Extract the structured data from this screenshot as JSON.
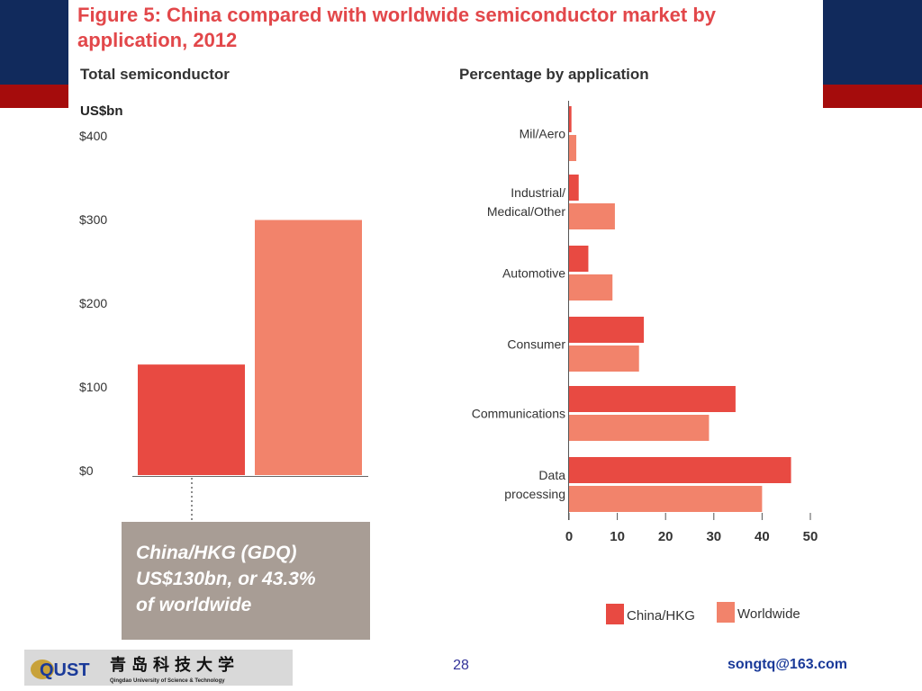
{
  "slide": {
    "page_number": "28",
    "email": "songtq@163.com",
    "logo_text": "QUST",
    "logo_chinese": "青岛科技大学",
    "logo_english": "Qingdao University of Science & Technology"
  },
  "figure": {
    "title": "Figure 5: China compared with worldwide semiconductor market by application, 2012"
  },
  "callout": {
    "line1": "China/HKG (GDQ)",
    "line2": "US$130bn, or 43.3%",
    "line3": "of worldwide"
  },
  "legend": {
    "items": [
      {
        "label": "China/HKG",
        "color": "#e84a42"
      },
      {
        "label": "Worldwide",
        "color": "#f2836b"
      }
    ]
  },
  "chart_data": [
    {
      "type": "bar",
      "title": "Total semiconductor",
      "ylabel": "US$bn",
      "ylim": [
        0,
        400
      ],
      "yticks": [
        "$0",
        "$100",
        "$200",
        "$300",
        "$400"
      ],
      "categories": [
        "China/HKG",
        "Worldwide"
      ],
      "values": [
        130,
        300
      ],
      "colors": [
        "#e84a42",
        "#f2836b"
      ]
    },
    {
      "type": "bar",
      "orientation": "horizontal",
      "title": "Percentage by application",
      "categories": [
        "Mil/Aero",
        "Industrial/\nMedical/Other",
        "Automotive",
        "Consumer",
        "Communications",
        "Data\nprocessing"
      ],
      "xlim": [
        0,
        50
      ],
      "xticks": [
        "0",
        "10",
        "20",
        "30",
        "40",
        "50"
      ],
      "series": [
        {
          "name": "China/HKG",
          "color": "#e84a42",
          "values": [
            0.5,
            2,
            4,
            15.5,
            34.5,
            46
          ]
        },
        {
          "name": "Worldwide",
          "color": "#f2836b",
          "values": [
            1.5,
            9.5,
            9,
            14.5,
            29,
            40
          ]
        }
      ],
      "legend": "bottom"
    }
  ]
}
